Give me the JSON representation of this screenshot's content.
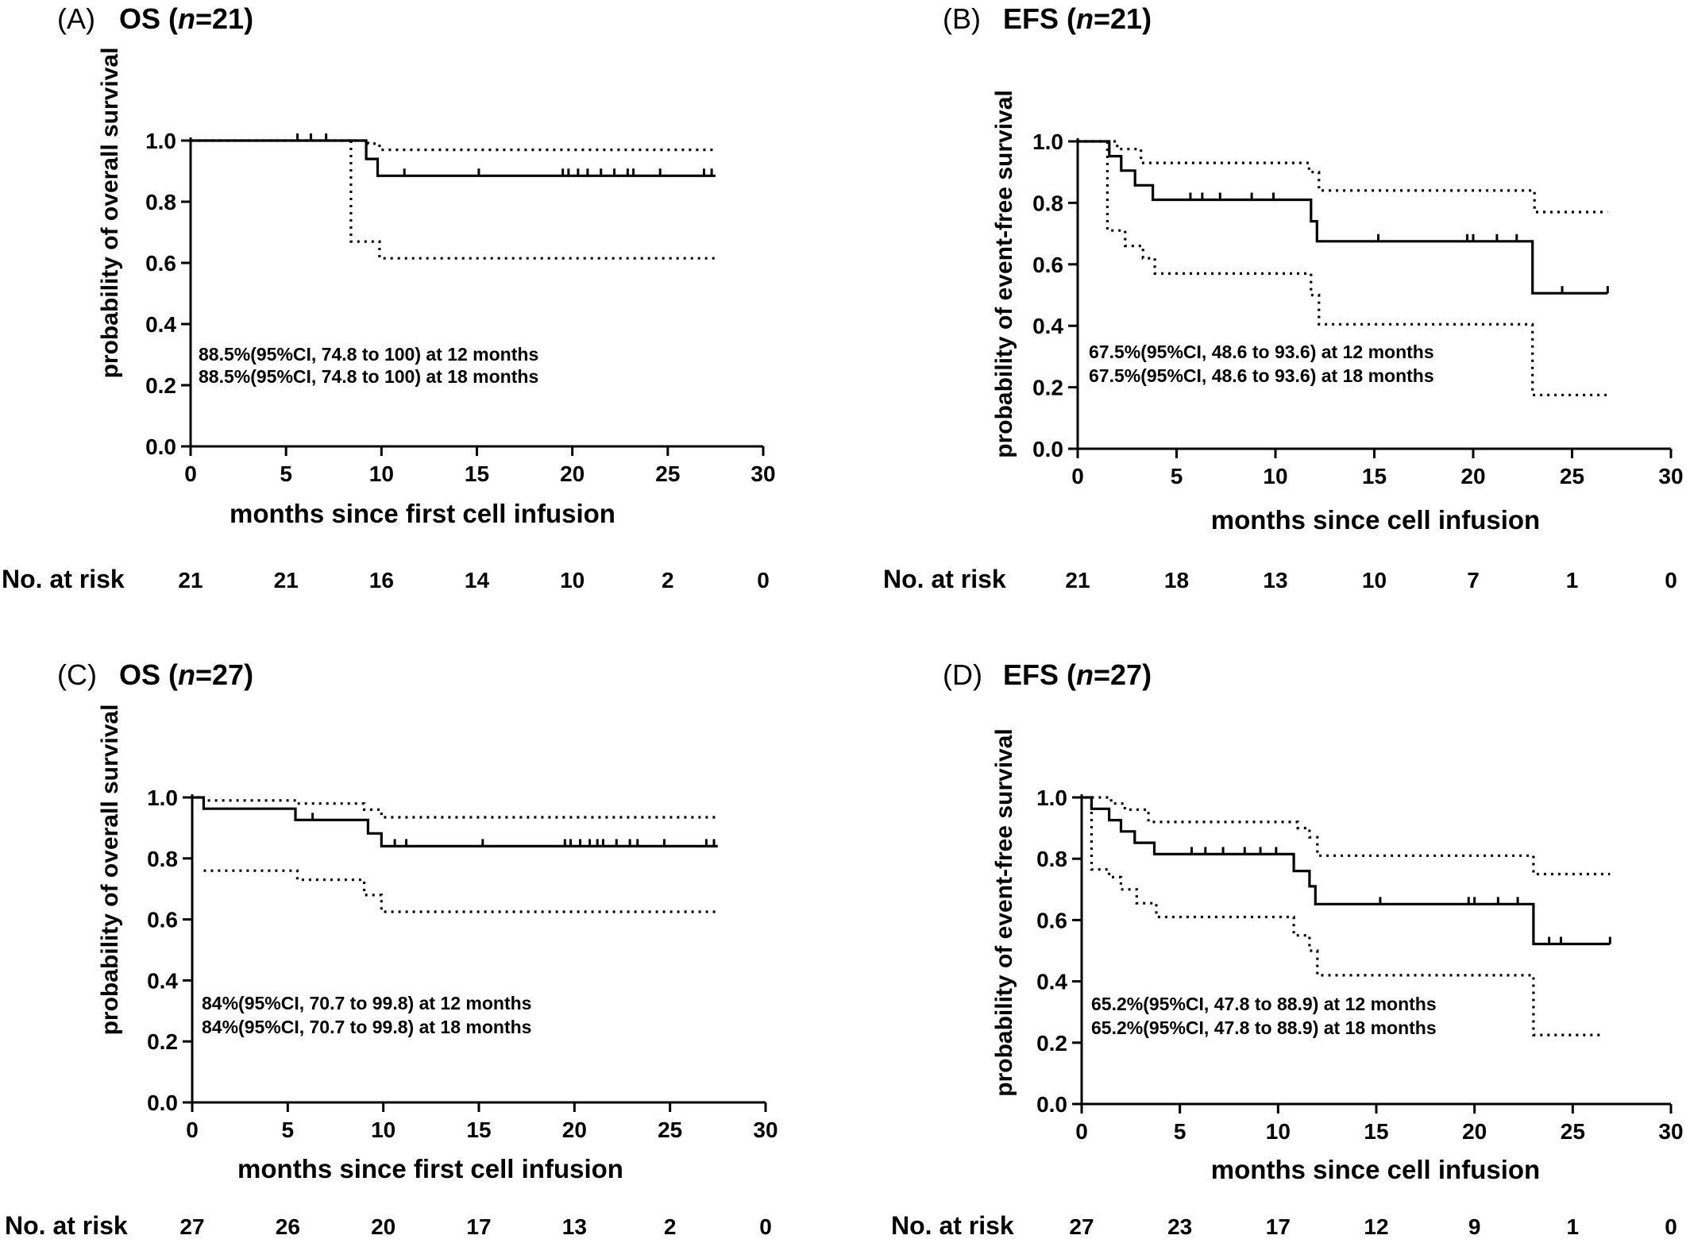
{
  "chart_data": [
    {
      "type": "line",
      "panel_letter": "(A)",
      "title_prefix": "OS (",
      "title_italic": "n",
      "title_suffix": "=21)",
      "xlabel": "months since first cell infusion",
      "ylabel": "probability of overall survival",
      "xlim": [
        0,
        30
      ],
      "ylim": [
        0,
        1
      ],
      "x_ticks": [
        "0",
        "5",
        "10",
        "15",
        "20",
        "25",
        "30"
      ],
      "y_ticks": [
        "0.0",
        "0.2",
        "0.4",
        "0.6",
        "0.8",
        "1.0"
      ],
      "grid": false,
      "annotations": [
        "88.5%(95%CI, 74.8 to 100) at 12 months",
        "88.5%(95%CI, 74.8 to 100) at 18 months"
      ],
      "risk_label": "No. at risk",
      "risk_numbers": [
        "21",
        "21",
        "16",
        "14",
        "10",
        "2",
        "0"
      ],
      "survival": [
        [
          0,
          1.0
        ],
        [
          9.2,
          1.0
        ],
        [
          9.2,
          0.94
        ],
        [
          9.8,
          0.94
        ],
        [
          9.8,
          0.885
        ],
        [
          27.5,
          0.885
        ]
      ],
      "ci_upper": [
        [
          0,
          1.0
        ],
        [
          9.3,
          1.0
        ],
        [
          9.3,
          0.99
        ],
        [
          9.9,
          0.99
        ],
        [
          9.9,
          0.97
        ],
        [
          27.5,
          0.97
        ]
      ],
      "ci_lower": [
        [
          8.4,
          1.0
        ],
        [
          8.4,
          0.67
        ],
        [
          9.9,
          0.67
        ],
        [
          9.9,
          0.615
        ],
        [
          27.5,
          0.615
        ]
      ],
      "censor_marks": [
        [
          5.6,
          1.0
        ],
        [
          6.3,
          1.0
        ],
        [
          7.1,
          1.0
        ],
        [
          11.2,
          0.885
        ],
        [
          15.1,
          0.885
        ],
        [
          19.5,
          0.885
        ],
        [
          19.8,
          0.885
        ],
        [
          20.3,
          0.885
        ],
        [
          20.8,
          0.885
        ],
        [
          21.5,
          0.885
        ],
        [
          22.2,
          0.885
        ],
        [
          22.9,
          0.885
        ],
        [
          23.2,
          0.885
        ],
        [
          24.6,
          0.885
        ],
        [
          26.9,
          0.885
        ],
        [
          27.3,
          0.885
        ]
      ]
    },
    {
      "type": "line",
      "panel_letter": "(B)",
      "title_prefix": "EFS (",
      "title_italic": "n",
      "title_suffix": "=21)",
      "xlabel": "months since cell infusion",
      "ylabel": "probability of event-free survival",
      "xlim": [
        0,
        30
      ],
      "ylim": [
        0,
        1
      ],
      "x_ticks": [
        "0",
        "5",
        "10",
        "15",
        "20",
        "25",
        "30"
      ],
      "y_ticks": [
        "0.0",
        "0.2",
        "0.4",
        "0.6",
        "0.8",
        "1.0"
      ],
      "grid": false,
      "annotations": [
        "67.5%(95%CI, 48.6 to 93.6) at 12 months",
        "67.5%(95%CI, 48.6 to 93.6) at 18 months"
      ],
      "risk_label": "No. at risk",
      "risk_numbers": [
        "21",
        "18",
        "13",
        "10",
        "7",
        "1",
        "0"
      ],
      "survival": [
        [
          0,
          1.0
        ],
        [
          1.6,
          1.0
        ],
        [
          1.6,
          0.952
        ],
        [
          2.2,
          0.952
        ],
        [
          2.2,
          0.905
        ],
        [
          2.9,
          0.905
        ],
        [
          2.9,
          0.857
        ],
        [
          3.8,
          0.857
        ],
        [
          3.8,
          0.81
        ],
        [
          11.8,
          0.81
        ],
        [
          11.8,
          0.74
        ],
        [
          12.1,
          0.74
        ],
        [
          12.1,
          0.675
        ],
        [
          23.0,
          0.675
        ],
        [
          23.0,
          0.506
        ],
        [
          26.8,
          0.506
        ]
      ],
      "ci_upper": [
        [
          0,
          1.0
        ],
        [
          2.0,
          1.0
        ],
        [
          2.0,
          0.975
        ],
        [
          3.2,
          0.975
        ],
        [
          3.2,
          0.93
        ],
        [
          11.7,
          0.93
        ],
        [
          11.7,
          0.9
        ],
        [
          12.2,
          0.9
        ],
        [
          12.2,
          0.84
        ],
        [
          23.1,
          0.84
        ],
        [
          23.1,
          0.77
        ],
        [
          26.8,
          0.77
        ]
      ],
      "ci_lower": [
        [
          1.5,
          1.0
        ],
        [
          1.5,
          0.71
        ],
        [
          2.4,
          0.71
        ],
        [
          2.4,
          0.66
        ],
        [
          3.3,
          0.66
        ],
        [
          3.3,
          0.62
        ],
        [
          3.9,
          0.62
        ],
        [
          3.9,
          0.57
        ],
        [
          11.8,
          0.57
        ],
        [
          11.8,
          0.5
        ],
        [
          12.2,
          0.5
        ],
        [
          12.2,
          0.405
        ],
        [
          23.0,
          0.405
        ],
        [
          23.0,
          0.175
        ],
        [
          26.8,
          0.175
        ]
      ],
      "censor_marks": [
        [
          5.7,
          0.81
        ],
        [
          6.3,
          0.81
        ],
        [
          7.2,
          0.81
        ],
        [
          8.8,
          0.81
        ],
        [
          9.9,
          0.81
        ],
        [
          15.2,
          0.675
        ],
        [
          19.7,
          0.675
        ],
        [
          20.0,
          0.675
        ],
        [
          21.2,
          0.675
        ],
        [
          22.2,
          0.675
        ],
        [
          24.5,
          0.506
        ],
        [
          26.8,
          0.506
        ]
      ]
    },
    {
      "type": "line",
      "panel_letter": "(C)",
      "title_prefix": "OS (",
      "title_italic": "n",
      "title_suffix": "=27)",
      "xlabel": "months since first cell infusion",
      "ylabel": "probability of overall survival",
      "xlim": [
        0,
        30
      ],
      "ylim": [
        0,
        1
      ],
      "x_ticks": [
        "0",
        "5",
        "10",
        "15",
        "20",
        "25",
        "30"
      ],
      "y_ticks": [
        "0.0",
        "0.2",
        "0.4",
        "0.6",
        "0.8",
        "1.0"
      ],
      "grid": false,
      "annotations": [
        "84%(95%CI, 70.7 to 99.8) at 12 months",
        "84%(95%CI, 70.7 to 99.8) at 18 months"
      ],
      "risk_label": "No. at risk",
      "risk_numbers": [
        "27",
        "26",
        "20",
        "17",
        "13",
        "2",
        "0"
      ],
      "survival": [
        [
          0,
          1.0
        ],
        [
          0.6,
          1.0
        ],
        [
          0.6,
          0.963
        ],
        [
          5.4,
          0.963
        ],
        [
          5.4,
          0.926
        ],
        [
          9.2,
          0.926
        ],
        [
          9.2,
          0.882
        ],
        [
          9.9,
          0.882
        ],
        [
          9.9,
          0.84
        ],
        [
          27.5,
          0.84
        ]
      ],
      "ci_upper": [
        [
          0.6,
          1.0
        ],
        [
          0.6,
          0.99
        ],
        [
          5.5,
          0.99
        ],
        [
          5.5,
          0.98
        ],
        [
          9.0,
          0.98
        ],
        [
          9.0,
          0.96
        ],
        [
          9.9,
          0.96
        ],
        [
          9.9,
          0.935
        ],
        [
          27.5,
          0.935
        ]
      ],
      "ci_lower": [
        [
          0.6,
          0.76
        ],
        [
          5.5,
          0.76
        ],
        [
          5.5,
          0.73
        ],
        [
          9.0,
          0.73
        ],
        [
          9.0,
          0.68
        ],
        [
          9.9,
          0.68
        ],
        [
          9.9,
          0.625
        ],
        [
          27.5,
          0.625
        ]
      ],
      "censor_marks": [
        [
          6.3,
          0.926
        ],
        [
          10.6,
          0.84
        ],
        [
          11.2,
          0.84
        ],
        [
          15.2,
          0.84
        ],
        [
          19.5,
          0.84
        ],
        [
          19.8,
          0.84
        ],
        [
          20.3,
          0.84
        ],
        [
          20.8,
          0.84
        ],
        [
          21.2,
          0.84
        ],
        [
          21.5,
          0.84
        ],
        [
          22.2,
          0.84
        ],
        [
          22.9,
          0.84
        ],
        [
          23.3,
          0.84
        ],
        [
          24.7,
          0.84
        ],
        [
          26.9,
          0.84
        ],
        [
          27.3,
          0.84
        ]
      ]
    },
    {
      "type": "line",
      "panel_letter": "(D)",
      "title_prefix": "EFS (",
      "title_italic": "n",
      "title_suffix": "=27)",
      "xlabel": "months since cell infusion",
      "ylabel": "probability of event-free survival",
      "xlim": [
        0,
        30
      ],
      "ylim": [
        0,
        1
      ],
      "x_ticks": [
        "0",
        "5",
        "10",
        "15",
        "20",
        "25",
        "30"
      ],
      "y_ticks": [
        "0.0",
        "0.2",
        "0.4",
        "0.6",
        "0.8",
        "1.0"
      ],
      "grid": false,
      "annotations": [
        "65.2%(95%CI, 47.8 to 88.9) at 12 months",
        "65.2%(95%CI, 47.8 to 88.9) at 18 months"
      ],
      "risk_label": "No. at risk",
      "risk_numbers": [
        "27",
        "23",
        "17",
        "12",
        "9",
        "1",
        "0"
      ],
      "survival": [
        [
          0,
          1.0
        ],
        [
          0.5,
          1.0
        ],
        [
          0.5,
          0.963
        ],
        [
          1.4,
          0.963
        ],
        [
          1.4,
          0.926
        ],
        [
          2.0,
          0.926
        ],
        [
          2.0,
          0.889
        ],
        [
          2.7,
          0.889
        ],
        [
          2.7,
          0.852
        ],
        [
          3.7,
          0.852
        ],
        [
          3.7,
          0.815
        ],
        [
          10.8,
          0.815
        ],
        [
          10.8,
          0.76
        ],
        [
          11.6,
          0.76
        ],
        [
          11.6,
          0.71
        ],
        [
          11.9,
          0.71
        ],
        [
          11.9,
          0.652
        ],
        [
          23.0,
          0.652
        ],
        [
          23.0,
          0.522
        ],
        [
          26.9,
          0.522
        ]
      ],
      "ci_upper": [
        [
          0.5,
          1.0
        ],
        [
          1.5,
          1.0
        ],
        [
          1.5,
          0.98
        ],
        [
          2.2,
          0.98
        ],
        [
          2.2,
          0.96
        ],
        [
          3.4,
          0.96
        ],
        [
          3.4,
          0.92
        ],
        [
          11.0,
          0.92
        ],
        [
          11.0,
          0.9
        ],
        [
          11.6,
          0.9
        ],
        [
          11.6,
          0.87
        ],
        [
          12.0,
          0.87
        ],
        [
          12.0,
          0.81
        ],
        [
          23.0,
          0.81
        ],
        [
          23.0,
          0.75
        ],
        [
          26.9,
          0.75
        ]
      ],
      "ci_lower": [
        [
          0.5,
          1.0
        ],
        [
          0.5,
          0.765
        ],
        [
          1.4,
          0.765
        ],
        [
          1.4,
          0.74
        ],
        [
          2.0,
          0.74
        ],
        [
          2.0,
          0.7
        ],
        [
          2.8,
          0.7
        ],
        [
          2.8,
          0.655
        ],
        [
          3.8,
          0.655
        ],
        [
          3.8,
          0.61
        ],
        [
          10.8,
          0.61
        ],
        [
          10.8,
          0.55
        ],
        [
          11.6,
          0.55
        ],
        [
          11.6,
          0.5
        ],
        [
          12.0,
          0.5
        ],
        [
          12.0,
          0.42
        ],
        [
          23.0,
          0.42
        ],
        [
          23.0,
          0.225
        ],
        [
          26.4,
          0.225
        ]
      ],
      "censor_marks": [
        [
          5.6,
          0.815
        ],
        [
          6.3,
          0.815
        ],
        [
          7.2,
          0.815
        ],
        [
          8.3,
          0.815
        ],
        [
          9.1,
          0.815
        ],
        [
          9.9,
          0.815
        ],
        [
          15.2,
          0.652
        ],
        [
          19.7,
          0.652
        ],
        [
          20.0,
          0.652
        ],
        [
          21.2,
          0.652
        ],
        [
          22.2,
          0.652
        ],
        [
          23.8,
          0.522
        ],
        [
          24.4,
          0.522
        ],
        [
          26.9,
          0.522
        ]
      ]
    }
  ]
}
